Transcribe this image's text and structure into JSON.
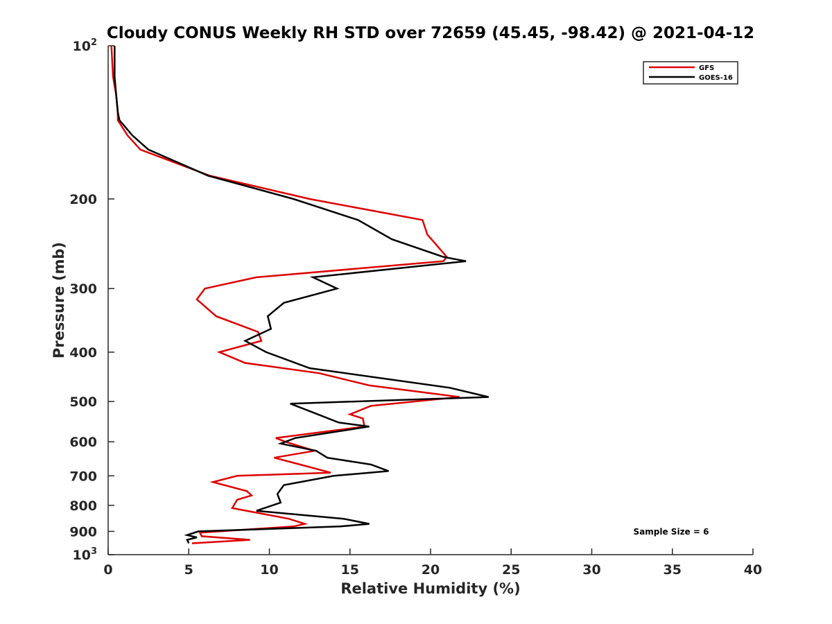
{
  "chart_data": {
    "type": "line",
    "title": "Cloudy CONUS Weekly RH STD over 72659 (45.45, -98.42) @ 2021-04-12",
    "xlabel": "Relative Humidity (%)",
    "ylabel": "Pressure (mb)",
    "xlim": [
      0,
      40
    ],
    "ylim": [
      100,
      1000
    ],
    "yscale": "log",
    "y_reversed": true,
    "x_ticks": [
      "0",
      "5",
      "10",
      "15",
      "20",
      "25",
      "30",
      "35",
      "40"
    ],
    "y_ticks": [
      {
        "value": 100,
        "label": "10",
        "sup": "2"
      },
      {
        "value": 200,
        "label": "200",
        "sup": ""
      },
      {
        "value": 300,
        "label": "300",
        "sup": ""
      },
      {
        "value": 400,
        "label": "400",
        "sup": ""
      },
      {
        "value": 500,
        "label": "500",
        "sup": ""
      },
      {
        "value": 600,
        "label": "600",
        "sup": ""
      },
      {
        "value": 700,
        "label": "700",
        "sup": ""
      },
      {
        "value": 800,
        "label": "800",
        "sup": ""
      },
      {
        "value": 900,
        "label": "900",
        "sup": ""
      },
      {
        "value": 1000,
        "label": "10",
        "sup": "3"
      }
    ],
    "grid": false,
    "legend_position": "top-right",
    "annotation": "Sample Size = 6",
    "series": [
      {
        "name": "GFS",
        "color": "#dd0000",
        "points": [
          [
            0.2,
            100
          ],
          [
            0.3,
            115
          ],
          [
            0.5,
            125
          ],
          [
            0.6,
            135
          ],
          [
            0.6,
            140
          ],
          [
            1.2,
            150
          ],
          [
            2.0,
            160
          ],
          [
            6.3,
            180
          ],
          [
            12.5,
            200
          ],
          [
            19.5,
            220
          ],
          [
            19.8,
            235
          ],
          [
            20.3,
            245
          ],
          [
            21.0,
            260
          ],
          [
            20.8,
            265
          ],
          [
            9.2,
            285
          ],
          [
            6.0,
            300
          ],
          [
            5.5,
            315
          ],
          [
            6.7,
            340
          ],
          [
            9.3,
            365
          ],
          [
            9.5,
            380
          ],
          [
            6.9,
            400
          ],
          [
            8.5,
            420
          ],
          [
            13.1,
            440
          ],
          [
            16.2,
            465
          ],
          [
            21.8,
            490
          ],
          [
            16.3,
            510
          ],
          [
            15.0,
            530
          ],
          [
            15.8,
            540
          ],
          [
            15.9,
            560
          ],
          [
            10.4,
            590
          ],
          [
            11.0,
            600
          ],
          [
            12.8,
            625
          ],
          [
            10.3,
            645
          ],
          [
            11.5,
            660
          ],
          [
            13.8,
            690
          ],
          [
            8.0,
            700
          ],
          [
            6.5,
            720
          ],
          [
            8.6,
            750
          ],
          [
            8.9,
            765
          ],
          [
            8.0,
            780
          ],
          [
            7.7,
            810
          ],
          [
            11.2,
            850
          ],
          [
            12.2,
            870
          ],
          [
            11.5,
            880
          ],
          [
            5.7,
            905
          ],
          [
            5.8,
            920
          ],
          [
            8.8,
            935
          ],
          [
            5.2,
            950
          ]
        ]
      },
      {
        "name": "GOES-16",
        "color": "#000000",
        "points": [
          [
            0.4,
            100
          ],
          [
            0.4,
            115
          ],
          [
            0.5,
            125
          ],
          [
            0.6,
            135
          ],
          [
            0.7,
            140
          ],
          [
            1.5,
            150
          ],
          [
            2.5,
            160
          ],
          [
            6.2,
            180
          ],
          [
            11.5,
            200
          ],
          [
            15.5,
            220
          ],
          [
            17.6,
            240
          ],
          [
            20.8,
            260
          ],
          [
            22.2,
            265
          ],
          [
            12.7,
            285
          ],
          [
            14.2,
            300
          ],
          [
            10.9,
            320
          ],
          [
            9.9,
            340
          ],
          [
            10.1,
            360
          ],
          [
            8.5,
            380
          ],
          [
            9.8,
            400
          ],
          [
            12.5,
            430
          ],
          [
            21.2,
            470
          ],
          [
            23.6,
            490
          ],
          [
            11.3,
            505
          ],
          [
            13.0,
            530
          ],
          [
            14.3,
            550
          ],
          [
            16.2,
            560
          ],
          [
            11.6,
            590
          ],
          [
            10.7,
            605
          ],
          [
            12.9,
            625
          ],
          [
            13.6,
            645
          ],
          [
            16.3,
            665
          ],
          [
            17.4,
            685
          ],
          [
            14.0,
            700
          ],
          [
            10.9,
            730
          ],
          [
            10.5,
            760
          ],
          [
            10.7,
            790
          ],
          [
            9.2,
            820
          ],
          [
            14.6,
            850
          ],
          [
            16.2,
            870
          ],
          [
            14.4,
            880
          ],
          [
            5.6,
            900
          ],
          [
            4.9,
            915
          ],
          [
            5.5,
            925
          ],
          [
            4.9,
            935
          ],
          [
            5.0,
            950
          ]
        ]
      }
    ]
  }
}
